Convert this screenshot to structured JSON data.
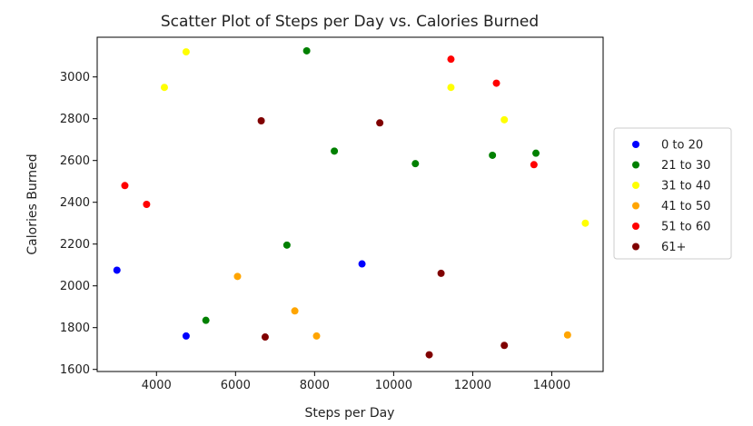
{
  "chart_data": {
    "type": "scatter",
    "title": "Scatter Plot of Steps per Day vs. Calories Burned",
    "xlabel": "Steps per Day",
    "ylabel": "Calories Burned",
    "xlim": [
      2500,
      15300
    ],
    "ylim": [
      1590,
      3190
    ],
    "xticks": [
      4000,
      6000,
      8000,
      10000,
      12000,
      14000
    ],
    "yticks": [
      1600,
      1800,
      2000,
      2200,
      2400,
      2600,
      2800,
      3000
    ],
    "grid": false,
    "legend": "right-outside",
    "series": [
      {
        "name": "0 to 20",
        "color": "#0000ff",
        "points": [
          [
            3000,
            2075
          ],
          [
            4750,
            1760
          ],
          [
            9200,
            2105
          ]
        ]
      },
      {
        "name": "21 to 30",
        "color": "#008000",
        "points": [
          [
            7800,
            3125
          ],
          [
            8500,
            2645
          ],
          [
            10550,
            2585
          ],
          [
            12500,
            2625
          ],
          [
            13600,
            2635
          ],
          [
            7300,
            2195
          ],
          [
            5250,
            1835
          ]
        ]
      },
      {
        "name": "31 to 40",
        "color": "#ffff00",
        "points": [
          [
            4750,
            3120
          ],
          [
            4200,
            2950
          ],
          [
            11450,
            2950
          ],
          [
            12800,
            2795
          ],
          [
            14850,
            2300
          ]
        ]
      },
      {
        "name": "41 to 50",
        "color": "#ffa500",
        "points": [
          [
            6050,
            2045
          ],
          [
            7500,
            1880
          ],
          [
            8050,
            1760
          ],
          [
            14400,
            1765
          ]
        ]
      },
      {
        "name": "51 to 60",
        "color": "#ff0000",
        "points": [
          [
            11450,
            3085
          ],
          [
            12600,
            2970
          ],
          [
            13550,
            2580
          ],
          [
            3200,
            2480
          ],
          [
            3750,
            2390
          ]
        ]
      },
      {
        "name": "61+",
        "color": "#800000",
        "points": [
          [
            6650,
            2790
          ],
          [
            9650,
            2780
          ],
          [
            11200,
            2060
          ],
          [
            6750,
            1755
          ],
          [
            10900,
            1670
          ],
          [
            12800,
            1715
          ]
        ]
      }
    ]
  }
}
